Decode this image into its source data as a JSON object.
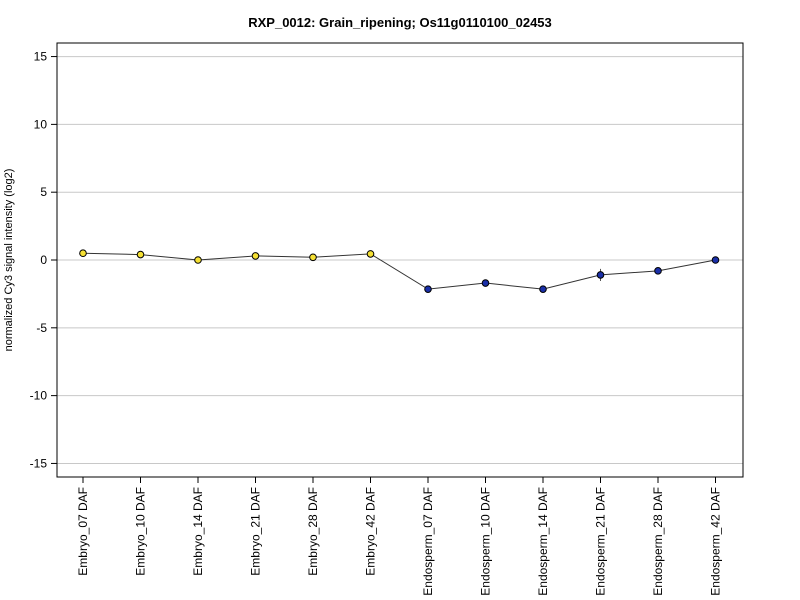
{
  "chart_data": {
    "type": "line",
    "title": "RXP_0012: Grain_ripening; Os11g0110100_02453",
    "xlabel": "",
    "ylabel": "normalized Cy3 signal intensity (log2)",
    "ylim": [
      -16,
      16
    ],
    "yticks": [
      -15,
      -10,
      -5,
      0,
      5,
      10,
      15
    ],
    "grid": true,
    "categories": [
      "Embryo_07 DAF",
      "Embryo_10 DAF",
      "Embryo_14 DAF",
      "Embryo_21 DAF",
      "Embryo_28 DAF",
      "Embryo_42 DAF",
      "Endosperm_07 DAF",
      "Endosperm_10 DAF",
      "Endosperm_14 DAF",
      "Endosperm_21 DAF",
      "Endosperm_28 DAF",
      "Endosperm_42 DAF"
    ],
    "values": [
      0.5,
      0.4,
      0.0,
      0.3,
      0.2,
      0.45,
      -2.15,
      -1.7,
      -2.15,
      -1.1,
      -0.8,
      0.0
    ],
    "errors": [
      0.15,
      0.12,
      0.12,
      0.2,
      0.15,
      0.12,
      0.12,
      0.1,
      0.1,
      0.45,
      0.25,
      0.08
    ],
    "point_colors": [
      "#f5e033",
      "#f5e033",
      "#f5e033",
      "#f5e033",
      "#f5e033",
      "#f5e033",
      "#1a2fa8",
      "#1a2fa8",
      "#1a2fa8",
      "#1a2fa8",
      "#1a2fa8",
      "#1a2fa8"
    ],
    "line_color": "#333333"
  }
}
